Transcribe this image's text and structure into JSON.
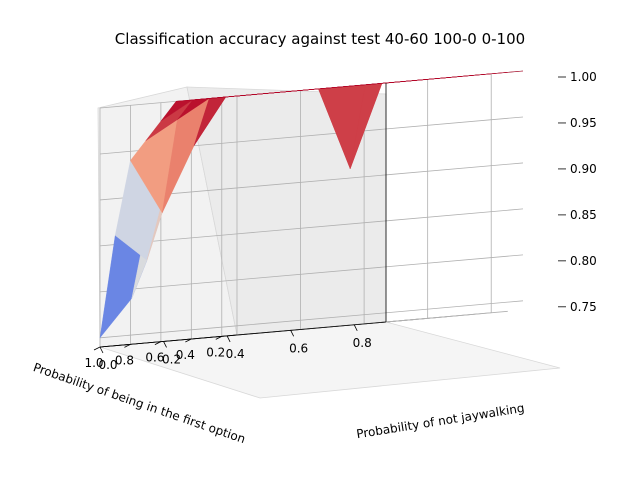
{
  "chart_data": {
    "type": "surface",
    "title": "Classification accuracy against test 40-60 100-0 0-100",
    "xlabel": "Probability of not jaywalking",
    "ylabel": "Probability of being in the first option",
    "zlabel": "",
    "x_ticks": [
      "0.0",
      "0.2",
      "0.4",
      "0.6",
      "0.8"
    ],
    "y_ticks": [
      "0.2",
      "0.4",
      "0.6",
      "0.8",
      "1.0"
    ],
    "z_ticks": [
      "0.75",
      "0.80",
      "0.85",
      "0.90",
      "0.95",
      "1.00"
    ],
    "x": [
      0.0,
      0.1,
      0.2,
      0.3,
      0.4,
      0.5,
      0.6,
      0.7,
      0.8,
      0.9
    ],
    "y": [
      0.1,
      0.2,
      0.3,
      0.4,
      0.5,
      0.6,
      0.7,
      0.8,
      0.9,
      1.0
    ],
    "zlim": [
      0.74,
      1.0
    ],
    "colormap": "coolwarm",
    "grid": true,
    "z": [
      [
        1.0,
        1.0,
        1.0,
        1.0,
        1.0,
        1.0,
        1.0,
        1.0,
        1.0,
        1.0
      ],
      [
        1.0,
        1.0,
        1.0,
        1.0,
        1.0,
        1.0,
        1.0,
        1.0,
        1.0,
        1.0
      ],
      [
        1.0,
        1.0,
        1.0,
        1.0,
        1.0,
        1.0,
        1.0,
        1.0,
        1.0,
        1.0
      ],
      [
        1.0,
        1.0,
        1.0,
        1.0,
        1.0,
        0.91,
        1.0,
        1.0,
        1.0,
        1.0
      ],
      [
        1.0,
        1.0,
        1.0,
        1.0,
        1.0,
        1.0,
        1.0,
        1.0,
        1.0,
        1.0
      ],
      [
        0.98,
        1.0,
        1.0,
        1.0,
        1.0,
        1.0,
        1.0,
        1.0,
        1.0,
        1.0
      ],
      [
        0.96,
        0.98,
        1.0,
        1.0,
        1.0,
        1.0,
        1.0,
        1.0,
        1.0,
        1.0
      ],
      [
        0.94,
        0.88,
        0.95,
        1.0,
        1.0,
        1.0,
        1.0,
        1.0,
        1.0,
        1.0
      ],
      [
        0.86,
        0.83,
        0.96,
        1.0,
        1.0,
        1.0,
        1.0,
        1.0,
        1.0,
        1.0
      ],
      [
        0.75,
        0.79,
        0.96,
        1.0,
        1.0,
        1.0,
        1.0,
        1.0,
        1.0,
        1.0
      ]
    ]
  }
}
